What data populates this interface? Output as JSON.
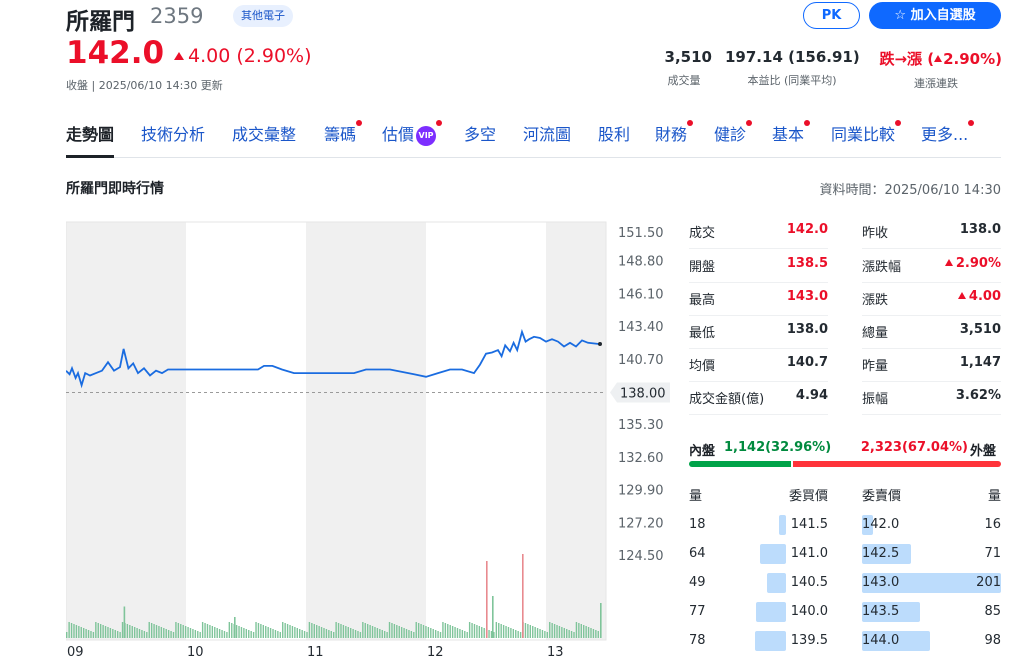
{
  "header": {
    "name": "所羅門",
    "code": "2359",
    "industry": "其他電子",
    "pk_label": "PK",
    "watchlist_label": "加入自選股",
    "price": "142.0",
    "change": "4.00 (2.90%)",
    "close_info": "收盤 | 2025/06/10 14:30 更新",
    "stats": {
      "volume_value": "3,510",
      "volume_label": "成交量",
      "pe_value": "197.14 (156.91)",
      "pe_label": "本益比 (同業平均)",
      "streak_prefix": "跌→漲 (",
      "streak_pct": "2.90%)",
      "streak_label": "連漲連跌"
    }
  },
  "tabs": [
    {
      "label": "走勢圖",
      "active": true
    },
    {
      "label": "技術分析"
    },
    {
      "label": "成交彙整"
    },
    {
      "label": "籌碼",
      "dot": true
    },
    {
      "label": "估價",
      "dot": true,
      "vip": "VIP"
    },
    {
      "label": "多空"
    },
    {
      "label": "河流圖"
    },
    {
      "label": "股利"
    },
    {
      "label": "財務",
      "dot": true
    },
    {
      "label": "健診",
      "dot": true
    },
    {
      "label": "基本",
      "dot": true
    },
    {
      "label": "同業比較",
      "dot": true
    },
    {
      "label": "更多...",
      "dot": true
    }
  ],
  "section": {
    "title": "所羅門即時行情",
    "data_time": "資料時間：2025/06/10 14:30"
  },
  "chart_data": {
    "type": "line",
    "y_ticks": [
      "151.50",
      "148.80",
      "146.10",
      "143.40",
      "140.70",
      "138.00",
      "135.30",
      "132.60",
      "129.90",
      "127.20",
      "124.50"
    ],
    "ylim": [
      124.5,
      151.5
    ],
    "reference_price": 138.0,
    "reference_label": "138.00",
    "x_ticks": [
      "09",
      "10",
      "11",
      "12",
      "13"
    ],
    "price_series": [
      [
        9.0,
        139.8
      ],
      [
        9.03,
        139.5
      ],
      [
        9.05,
        140.0
      ],
      [
        9.08,
        139.2
      ],
      [
        9.1,
        139.6
      ],
      [
        9.13,
        138.6
      ],
      [
        9.16,
        139.6
      ],
      [
        9.2,
        139.4
      ],
      [
        9.25,
        139.6
      ],
      [
        9.3,
        139.8
      ],
      [
        9.35,
        140.5
      ],
      [
        9.4,
        139.8
      ],
      [
        9.45,
        140.1
      ],
      [
        9.48,
        141.6
      ],
      [
        9.52,
        140.0
      ],
      [
        9.56,
        140.4
      ],
      [
        9.6,
        139.6
      ],
      [
        9.65,
        140.0
      ],
      [
        9.7,
        139.4
      ],
      [
        9.75,
        139.8
      ],
      [
        9.8,
        139.6
      ],
      [
        9.85,
        139.9
      ],
      [
        10.0,
        139.9
      ],
      [
        10.3,
        139.9
      ],
      [
        10.6,
        139.9
      ],
      [
        10.65,
        140.2
      ],
      [
        10.72,
        140.2
      ],
      [
        10.8,
        139.9
      ],
      [
        10.9,
        139.6
      ],
      [
        11.0,
        139.6
      ],
      [
        11.2,
        139.6
      ],
      [
        11.4,
        139.6
      ],
      [
        11.5,
        139.9
      ],
      [
        11.7,
        139.9
      ],
      [
        11.9,
        139.5
      ],
      [
        12.0,
        139.3
      ],
      [
        12.1,
        139.6
      ],
      [
        12.2,
        139.9
      ],
      [
        12.3,
        139.9
      ],
      [
        12.4,
        139.6
      ],
      [
        12.45,
        140.3
      ],
      [
        12.5,
        141.2
      ],
      [
        12.55,
        141.3
      ],
      [
        12.6,
        141.5
      ],
      [
        12.63,
        141.0
      ],
      [
        12.66,
        141.9
      ],
      [
        12.7,
        141.4
      ],
      [
        12.73,
        142.1
      ],
      [
        12.76,
        141.5
      ],
      [
        12.8,
        143.0
      ],
      [
        12.83,
        142.2
      ],
      [
        12.86,
        142.4
      ],
      [
        12.9,
        142.6
      ],
      [
        12.95,
        142.5
      ],
      [
        13.0,
        142.2
      ],
      [
        13.05,
        142.4
      ],
      [
        13.1,
        142.2
      ],
      [
        13.15,
        141.8
      ],
      [
        13.2,
        142.1
      ],
      [
        13.25,
        141.8
      ],
      [
        13.3,
        142.3
      ],
      [
        13.35,
        142.1
      ],
      [
        13.45,
        142.0
      ]
    ],
    "volume_spikes": [
      [
        9.48,
        9
      ],
      [
        10.4,
        6
      ],
      [
        12.5,
        22
      ],
      [
        12.55,
        12
      ],
      [
        12.8,
        24
      ],
      [
        13.45,
        10
      ]
    ],
    "ylabel": "",
    "xlabel": ""
  },
  "quote": {
    "left": [
      {
        "label": "成交",
        "value": "142.0",
        "color": "#eb0f29"
      },
      {
        "label": "開盤",
        "value": "138.5",
        "color": "#eb0f29"
      },
      {
        "label": "最高",
        "value": "143.0",
        "color": "#eb0f29"
      },
      {
        "label": "最低",
        "value": "138.0",
        "color": "#232a31"
      },
      {
        "label": "均價",
        "value": "140.7",
        "color": "#232a31"
      },
      {
        "label": "成交金額(億)",
        "value": "4.94",
        "color": "#232a31"
      }
    ],
    "right": [
      {
        "label": "昨收",
        "value": "138.0",
        "color": "#232a31"
      },
      {
        "label": "漲跌幅",
        "value": "2.90%",
        "color": "#eb0f29",
        "up": true
      },
      {
        "label": "漲跌",
        "value": "4.00",
        "color": "#eb0f29",
        "up": true
      },
      {
        "label": "總量",
        "value": "3,510",
        "color": "#232a31"
      },
      {
        "label": "昨量",
        "value": "1,147",
        "color": "#232a31"
      },
      {
        "label": "振幅",
        "value": "3.62%",
        "color": "#232a31"
      }
    ]
  },
  "inner_outer": {
    "inner_label": "內盤",
    "inner_value": "1,142(32.96%)",
    "outer_value": "2,323(67.04%)",
    "outer_label": "外盤",
    "inner_pct": 32.96
  },
  "order_book": {
    "headers": {
      "bid_qty": "量",
      "bid_price": "委買價",
      "ask_price": "委賣價",
      "ask_qty": "量"
    },
    "rows": [
      {
        "bid_qty": "18",
        "bid_price": "141.5",
        "ask_price": "142.0",
        "ask_qty": "16",
        "bid_frac": 0.09,
        "ask_frac": 0.08
      },
      {
        "bid_qty": "64",
        "bid_price": "141.0",
        "ask_price": "142.5",
        "ask_qty": "71",
        "bid_frac": 0.32,
        "ask_frac": 0.35
      },
      {
        "bid_qty": "49",
        "bid_price": "140.5",
        "ask_price": "143.0",
        "ask_qty": "201",
        "bid_frac": 0.24,
        "ask_frac": 1.0
      },
      {
        "bid_qty": "77",
        "bid_price": "140.0",
        "ask_price": "143.5",
        "ask_qty": "85",
        "bid_frac": 0.38,
        "ask_frac": 0.42
      },
      {
        "bid_qty": "78",
        "bid_price": "139.5",
        "ask_price": "144.0",
        "ask_qty": "98",
        "bid_frac": 0.39,
        "ask_frac": 0.49
      }
    ]
  }
}
